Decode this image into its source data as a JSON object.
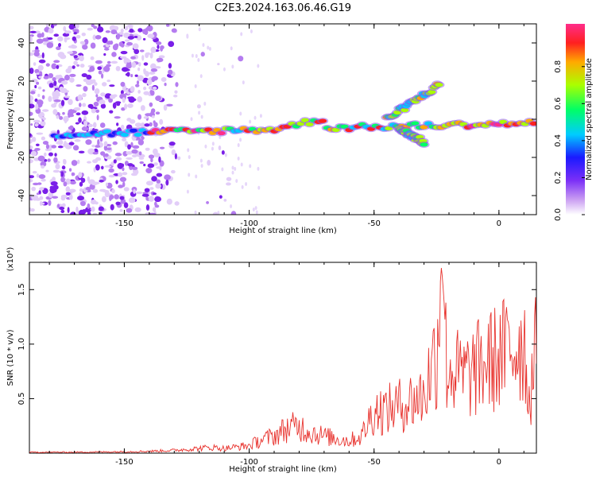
{
  "title": "C2E3.2024.163.06.46.G19",
  "colors": {
    "snr_line": "#e8332e",
    "spectrogram_noise": "#8a2be2",
    "axis": "#000000"
  },
  "chart_data": [
    {
      "type": "heatmap",
      "xlabel": "Height of straight line (km)",
      "ylabel": "Frequency (Hz)",
      "xlim": [
        -188,
        15
      ],
      "ylim": [
        -50,
        50
      ],
      "xticks": [
        -150,
        -100,
        -50,
        0
      ],
      "yticks": [
        -40,
        -20,
        0,
        20,
        40
      ],
      "colorbar": {
        "label": "Normalized spectral amplitude",
        "range": [
          0,
          1
        ],
        "ticks": [
          "0.0",
          "0.2",
          "0.4",
          "0.6",
          "0.8"
        ],
        "colormap": "rainbow (purple-blue-cyan-green-yellow-red)"
      },
      "features": [
        {
          "name": "main track",
          "x_start": -178,
          "x_end": 14,
          "freq_start": -8,
          "freq_end": -2
        },
        {
          "name": "upper branch",
          "x_start": -45,
          "x_end": -24,
          "freq_start": 0,
          "freq_end": 18
        },
        {
          "name": "lower branch",
          "x_start": -40,
          "x_end": -30,
          "freq_start": -5,
          "freq_end": -12
        }
      ]
    },
    {
      "type": "line",
      "xlabel": "Height of straight line (km)",
      "ylabel": "SNR (10 * v/v)",
      "scale_note": "(x10⁴)",
      "xlim": [
        -188,
        15
      ],
      "ylim": [
        0,
        1.75
      ],
      "xticks": [
        -150,
        -100,
        -50,
        0
      ],
      "yticks": [
        "0.5",
        "1.0",
        "1.5"
      ],
      "series": [
        {
          "x": [
            -188,
            -170,
            -150,
            -140,
            -130,
            -120,
            -115,
            -110,
            -100,
            -95,
            -90,
            -85,
            -80,
            -75,
            -70,
            -65,
            -60,
            -55,
            -50,
            -45,
            -40,
            -35,
            -30,
            -27,
            -25,
            -23,
            -22,
            -21,
            -20,
            -15,
            -10,
            -5,
            0,
            5,
            10,
            12,
            15
          ],
          "y": [
            0.01,
            0.01,
            0.015,
            0.02,
            0.03,
            0.05,
            0.06,
            0.05,
            0.08,
            0.14,
            0.18,
            0.26,
            0.28,
            0.22,
            0.18,
            0.15,
            0.13,
            0.18,
            0.45,
            0.45,
            0.5,
            0.55,
            0.6,
            0.9,
            1.05,
            1.72,
            1.4,
            0.95,
            0.9,
            0.8,
            0.85,
            0.95,
            1.0,
            1.1,
            1.2,
            0.55,
            1.1
          ]
        }
      ]
    }
  ]
}
